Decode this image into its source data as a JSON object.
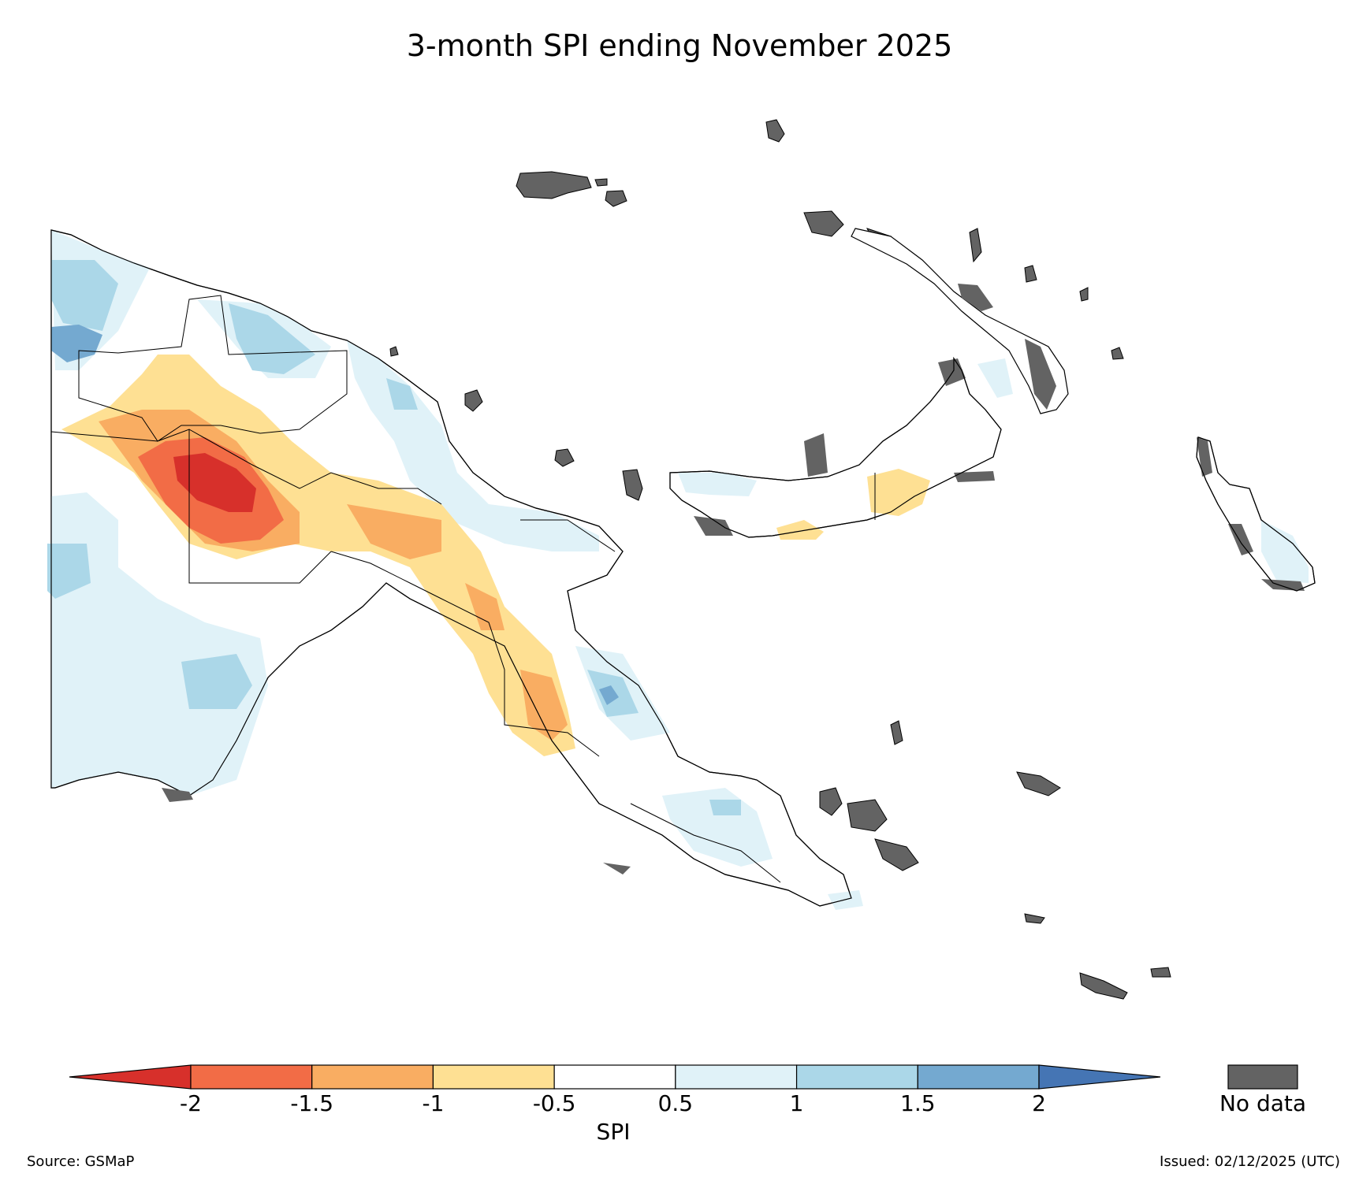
{
  "title": "3-month SPI ending November 2025",
  "colorbar": {
    "label": "SPI",
    "ticks": [
      "-2",
      "-1.5",
      "-1",
      "-0.5",
      "0.5",
      "1",
      "1.5",
      "2"
    ],
    "bins": [
      {
        "range": "< -2",
        "color": "#d7302b"
      },
      {
        "range": "-2 to -1.5",
        "color": "#f26c46"
      },
      {
        "range": "-1.5 to -1",
        "color": "#f9ad62"
      },
      {
        "range": "-1 to -0.5",
        "color": "#fee093"
      },
      {
        "range": "-0.5 to 0.5",
        "color": "#ffffff"
      },
      {
        "range": "0.5 to 1",
        "color": "#e0f2f8"
      },
      {
        "range": "1 to 1.5",
        "color": "#abd7e8"
      },
      {
        "range": "1.5 to 2",
        "color": "#74a9d0"
      },
      {
        "range": "> 2",
        "color": "#4575b4"
      }
    ],
    "nodata_label": "No data",
    "nodata_color": "#636363"
  },
  "footer": {
    "source": "Source: GSMaP",
    "issued": "Issued: 02/12/2025 (UTC)"
  }
}
